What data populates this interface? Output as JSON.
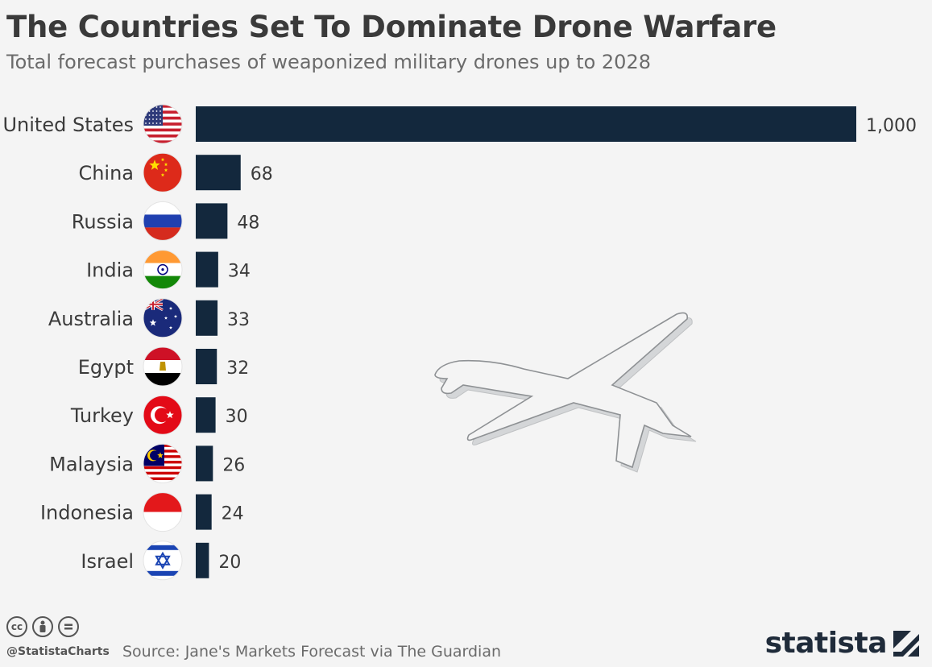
{
  "header": {
    "title": "The Countries Set To Dominate Drone Warfare",
    "subtitle": "Total forecast purchases of weaponized military drones up to 2028"
  },
  "footer": {
    "handle": "@StatistaCharts",
    "source": "Source: Jane's Markets Forecast via The Guardian",
    "brand": "statista",
    "license_icons": [
      "cc-icon",
      "by-icon",
      "nd-icon"
    ]
  },
  "colors": {
    "bar": "#13283d",
    "background": "#f4f4f4",
    "drone": "#cfd1d3"
  },
  "chart_data": {
    "type": "bar",
    "orientation": "horizontal",
    "categories": [
      "United States",
      "China",
      "Russia",
      "India",
      "Australia",
      "Egypt",
      "Turkey",
      "Malaysia",
      "Indonesia",
      "Israel"
    ],
    "values": [
      1000,
      68,
      48,
      34,
      33,
      32,
      30,
      26,
      24,
      20
    ],
    "value_labels": [
      "1,000",
      "68",
      "48",
      "34",
      "33",
      "32",
      "30",
      "26",
      "24",
      "20"
    ],
    "flag_icons": [
      "us-flag-icon",
      "china-flag-icon",
      "russia-flag-icon",
      "india-flag-icon",
      "australia-flag-icon",
      "egypt-flag-icon",
      "turkey-flag-icon",
      "malaysia-flag-icon",
      "indonesia-flag-icon",
      "israel-flag-icon"
    ],
    "xlim": [
      0,
      1000
    ],
    "grid": false,
    "decoration": "drone-illustration"
  }
}
